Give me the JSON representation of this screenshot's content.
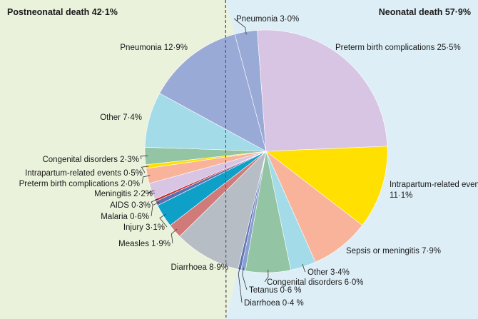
{
  "chart_data": {
    "type": "pie",
    "groups": [
      {
        "name": "Postneonatal death",
        "share": "42·1%",
        "background": "#eaf2dc"
      },
      {
        "name": "Neonatal death",
        "share": "57·9%",
        "background": "#ddeef6"
      }
    ],
    "slices": [
      {
        "label": "Pneumonia",
        "value": 3.0,
        "display": "3·0%",
        "group": "Neonatal death",
        "color": "#9aaad6"
      },
      {
        "label": "Preterm birth complications",
        "value": 25.5,
        "display": "25·5%",
        "group": "Neonatal death",
        "color": "#d8c4e3"
      },
      {
        "label": "Intrapartum-related events",
        "value": 11.1,
        "display": "11·1%",
        "group": "Neonatal death",
        "color": "#ffe000"
      },
      {
        "label": "Sepsis or meningitis",
        "value": 7.9,
        "display": "7·9%",
        "group": "Neonatal death",
        "color": "#f9b39a"
      },
      {
        "label": "Other",
        "value": 3.4,
        "display": "3·4%",
        "group": "Neonatal death",
        "color": "#a3dbe9"
      },
      {
        "label": "Congenital disorders",
        "value": 6.0,
        "display": "6·0%",
        "group": "Neonatal death",
        "color": "#93c4a3"
      },
      {
        "label": "Tetanus",
        "value": 0.6,
        "display": "0·6 %",
        "group": "Neonatal death",
        "color": "#8aa0d0"
      },
      {
        "label": "Diarrhoea",
        "value": 0.4,
        "display": "0·4 %",
        "group": "Neonatal death",
        "color": "#5f75b5"
      },
      {
        "label": "Diarrhoea",
        "value": 8.9,
        "display": "8·9%",
        "group": "Postneonatal death",
        "color": "#b6bdc4"
      },
      {
        "label": "Measles",
        "value": 1.9,
        "display": "1·9%",
        "group": "Postneonatal death",
        "color": "#d07a7a"
      },
      {
        "label": "Injury",
        "value": 3.1,
        "display": "3·1%",
        "group": "Postneonatal death",
        "color": "#0fa0c8"
      },
      {
        "label": "Malaria",
        "value": 0.6,
        "display": "0·6%",
        "group": "Postneonatal death",
        "color": "#5a6fb0"
      },
      {
        "label": "AIDS",
        "value": 0.3,
        "display": "0·3%",
        "group": "Postneonatal death",
        "color": "#c62d2d"
      },
      {
        "label": "Meningitis",
        "value": 2.2,
        "display": "2·2%",
        "group": "Postneonatal death",
        "color": "#d8c4e3"
      },
      {
        "label": "Preterm birth complications",
        "value": 2.0,
        "display": "2·0%",
        "group": "Postneonatal death",
        "color": "#f9b39a"
      },
      {
        "label": "Intrapartum-related events",
        "value": 0.5,
        "display": "0·5%",
        "group": "Postneonatal death",
        "color": "#ffe000"
      },
      {
        "label": "Congenital disorders",
        "value": 2.3,
        "display": "2·3%",
        "group": "Postneonatal death",
        "color": "#93c4a3"
      },
      {
        "label": "Other",
        "value": 7.4,
        "display": "7·4%",
        "group": "Postneonatal death",
        "color": "#a3dbe9"
      },
      {
        "label": "Pneumonia",
        "value": 12.9,
        "display": "12·9%",
        "group": "Postneonatal death",
        "color": "#9aaad6"
      }
    ]
  }
}
